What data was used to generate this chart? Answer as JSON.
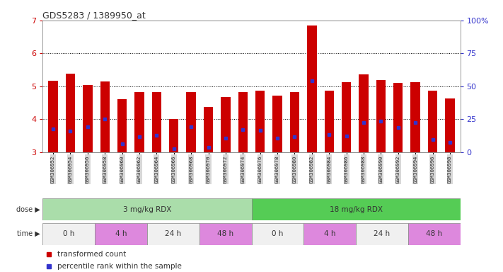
{
  "title": "GDS5283 / 1389950_at",
  "samples": [
    "GSM306952",
    "GSM306954",
    "GSM306956",
    "GSM306958",
    "GSM306960",
    "GSM306962",
    "GSM306964",
    "GSM306966",
    "GSM306968",
    "GSM306970",
    "GSM306972",
    "GSM306974",
    "GSM306976",
    "GSM306978",
    "GSM306980",
    "GSM306982",
    "GSM306984",
    "GSM306986",
    "GSM306988",
    "GSM306990",
    "GSM306992",
    "GSM306994",
    "GSM306996",
    "GSM306998"
  ],
  "transformed_count": [
    5.18,
    5.38,
    5.05,
    5.15,
    4.62,
    4.83,
    4.82,
    4.0,
    4.83,
    4.37,
    4.68,
    4.82,
    4.88,
    4.71,
    4.83,
    6.85,
    4.88,
    5.12,
    5.37,
    5.2,
    5.11,
    5.13,
    4.88,
    4.63
  ],
  "percentile_rank": [
    3.7,
    3.65,
    3.78,
    4.02,
    3.26,
    3.48,
    3.52,
    3.1,
    3.78,
    3.16,
    3.42,
    3.68,
    3.67,
    3.43,
    3.47,
    5.17,
    3.53,
    3.5,
    3.9,
    3.95,
    3.76,
    3.9,
    3.38,
    3.3
  ],
  "y_min": 3.0,
  "y_max": 7.0,
  "y_ticks": [
    3,
    4,
    5,
    6,
    7
  ],
  "bar_color": "#cc0000",
  "blue_marker_color": "#3333cc",
  "axis_color_left": "#cc0000",
  "axis_color_right": "#3333cc",
  "dose_groups": [
    {
      "label": "3 mg/kg RDX",
      "start": 0,
      "end": 12,
      "color": "#aaddaa"
    },
    {
      "label": "18 mg/kg RDX",
      "start": 12,
      "end": 24,
      "color": "#55cc55"
    }
  ],
  "time_groups": [
    {
      "label": "0 h",
      "start": 0,
      "end": 3,
      "color": "#f0f0f0"
    },
    {
      "label": "4 h",
      "start": 3,
      "end": 6,
      "color": "#dd88dd"
    },
    {
      "label": "24 h",
      "start": 6,
      "end": 9,
      "color": "#f0f0f0"
    },
    {
      "label": "48 h",
      "start": 9,
      "end": 12,
      "color": "#dd88dd"
    },
    {
      "label": "0 h",
      "start": 12,
      "end": 15,
      "color": "#f0f0f0"
    },
    {
      "label": "4 h",
      "start": 15,
      "end": 18,
      "color": "#dd88dd"
    },
    {
      "label": "24 h",
      "start": 18,
      "end": 21,
      "color": "#f0f0f0"
    },
    {
      "label": "48 h",
      "start": 21,
      "end": 24,
      "color": "#dd88dd"
    }
  ],
  "legend_items": [
    {
      "label": "transformed count",
      "color": "#cc0000"
    },
    {
      "label": "percentile rank within the sample",
      "color": "#3333cc"
    }
  ],
  "bg_color": "#ffffff",
  "label_bg_color": "#d8d8d8",
  "bar_width": 0.55,
  "right_y_tick_vals": [
    3.0,
    4.0,
    5.0,
    6.0,
    7.0
  ],
  "right_y_tick_labels": [
    "0",
    "25",
    "50",
    "75",
    "100%"
  ]
}
